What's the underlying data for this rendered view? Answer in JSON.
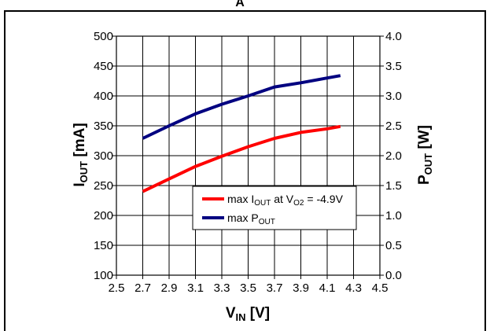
{
  "header": {
    "letter": "A"
  },
  "chart_data": {
    "type": "line",
    "x": [
      2.7,
      2.9,
      3.1,
      3.3,
      3.5,
      3.7,
      3.9,
      4.1,
      4.2
    ],
    "xlim": [
      2.5,
      4.5
    ],
    "xticks": [
      "2.5",
      "2.7",
      "2.9",
      "3.1",
      "3.3",
      "3.5",
      "3.7",
      "3.9",
      "4.1",
      "4.3",
      "4.5"
    ],
    "xlabel": {
      "main": "V",
      "sub": "IN",
      "unit": " [V]"
    },
    "ylabel_left": {
      "main": "I",
      "sub": "OUT",
      "unit": " [mA]"
    },
    "ylabel_right": {
      "main": "P",
      "sub": "OUT",
      "unit": " [W]"
    },
    "ylim_left": [
      100,
      500
    ],
    "ylim_right": [
      0.0,
      4.0
    ],
    "yticks_left": [
      "100",
      "150",
      "200",
      "250",
      "300",
      "350",
      "400",
      "450",
      "500"
    ],
    "yticks_right": [
      "0.0",
      "0.5",
      "1.0",
      "1.5",
      "2.0",
      "2.5",
      "3.0",
      "3.5",
      "4.0"
    ],
    "grid": true,
    "legend_position": "center-right",
    "series": [
      {
        "axis": "left",
        "color": "#ff0000",
        "legend": {
          "pre": "max I",
          "sub1": "OUT",
          "mid": " at V",
          "sub2": "O2",
          "post": " = -4.9V"
        },
        "values": [
          240,
          261,
          282,
          299,
          315,
          329,
          339,
          345,
          349
        ]
      },
      {
        "axis": "right",
        "color": "#000080",
        "legend": {
          "pre": "max P",
          "sub1": "OUT",
          "mid": "",
          "sub2": "",
          "post": ""
        },
        "values": [
          2.29,
          2.5,
          2.7,
          2.86,
          3.0,
          3.15,
          3.22,
          3.3,
          3.34
        ]
      }
    ]
  }
}
